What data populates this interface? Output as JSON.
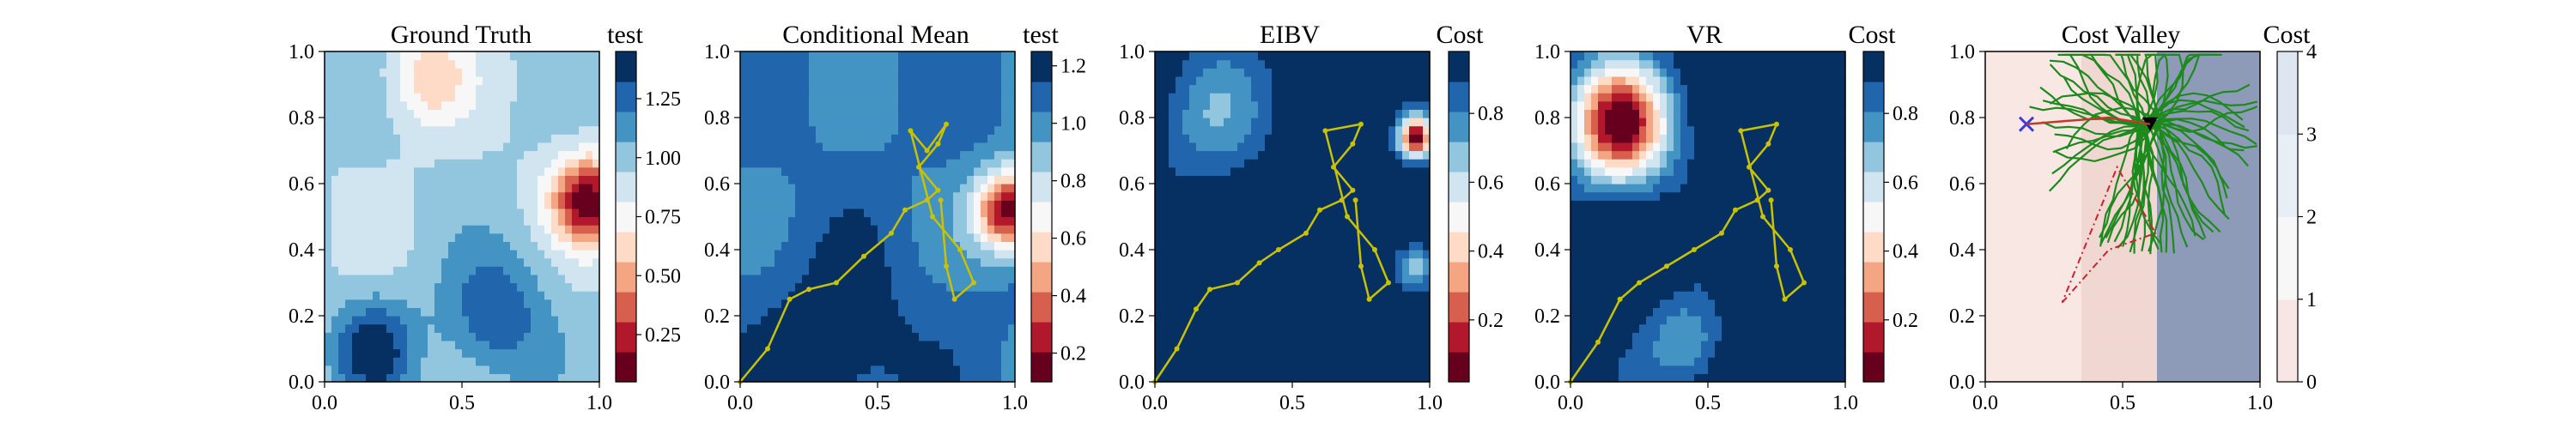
{
  "chart_data": [
    {
      "type": "heatmap",
      "title": "Ground Truth",
      "colorbar_label": "test",
      "xlim": [
        0.0,
        1.0
      ],
      "ylim": [
        0.0,
        1.0
      ],
      "xticks": [
        "0.0",
        "0.5",
        "1.0"
      ],
      "yticks": [
        "0.0",
        "0.2",
        "0.4",
        "0.6",
        "0.8",
        "1.0"
      ],
      "colorbar_ticks": [
        "0.25",
        "0.50",
        "0.75",
        "1.00",
        "1.25"
      ],
      "colorbar_range": [
        0.05,
        1.45
      ],
      "colormap": "RdBu",
      "blobs": [
        {
          "x": 0.96,
          "y": 0.55,
          "value": 0.1,
          "r": 0.13
        },
        {
          "x": 0.18,
          "y": 0.1,
          "value": 1.4,
          "r": 0.15
        },
        {
          "x": 0.38,
          "y": 0.92,
          "value": 0.6,
          "r": 0.14
        },
        {
          "x": 0.62,
          "y": 0.2,
          "value": 1.3,
          "r": 0.2
        }
      ],
      "base_value": 0.95
    },
    {
      "type": "heatmap",
      "title": "Conditional Mean",
      "colorbar_label": "test",
      "xlim": [
        0.0,
        1.0
      ],
      "ylim": [
        0.0,
        1.0
      ],
      "xticks": [
        "0.0",
        "0.5",
        "1.0"
      ],
      "yticks": [
        "0.0",
        "0.2",
        "0.4",
        "0.6",
        "0.8",
        "1.0"
      ],
      "colorbar_ticks": [
        "0.2",
        "0.4",
        "0.6",
        "0.8",
        "1.0",
        "1.2"
      ],
      "colorbar_range": [
        0.1,
        1.25
      ],
      "colormap": "RdBu",
      "blobs": [
        {
          "x": 0.98,
          "y": 0.52,
          "value": 0.1,
          "r": 0.12
        },
        {
          "x": 0.35,
          "y": 0.1,
          "value": 1.25,
          "r": 0.3
        }
      ],
      "base_value": 1.05,
      "path": [
        [
          0.0,
          0.0
        ],
        [
          0.1,
          0.1
        ],
        [
          0.18,
          0.25
        ],
        [
          0.25,
          0.28
        ],
        [
          0.35,
          0.3
        ],
        [
          0.45,
          0.38
        ],
        [
          0.55,
          0.45
        ],
        [
          0.6,
          0.52
        ],
        [
          0.68,
          0.55
        ],
        [
          0.72,
          0.58
        ],
        [
          0.65,
          0.65
        ],
        [
          0.72,
          0.72
        ],
        [
          0.75,
          0.78
        ],
        [
          0.68,
          0.7
        ],
        [
          0.62,
          0.76
        ],
        [
          0.7,
          0.5
        ],
        [
          0.8,
          0.4
        ],
        [
          0.85,
          0.3
        ],
        [
          0.78,
          0.25
        ],
        [
          0.75,
          0.35
        ],
        [
          0.73,
          0.55
        ]
      ]
    },
    {
      "type": "heatmap",
      "title": "EIBV",
      "colorbar_label": "Cost",
      "xlim": [
        0.0,
        1.0
      ],
      "ylim": [
        0.0,
        1.0
      ],
      "xticks": [
        "0.0",
        "0.5",
        "1.0"
      ],
      "yticks": [
        "0.0",
        "0.2",
        "0.4",
        "0.6",
        "0.8",
        "1.0"
      ],
      "colorbar_ticks": [
        "0.2",
        "0.4",
        "0.6",
        "0.8"
      ],
      "colorbar_range": [
        0.02,
        0.98
      ],
      "colormap": "RdBu",
      "blobs": [
        {
          "x": 0.95,
          "y": 0.74,
          "value": 0.05,
          "r": 0.06
        },
        {
          "x": 0.95,
          "y": 0.35,
          "value": 0.6,
          "r": 0.07
        },
        {
          "x": 0.2,
          "y": 0.8,
          "value": 0.75,
          "r": 0.2
        }
      ],
      "base_value": 0.98,
      "path": [
        [
          0.0,
          0.0
        ],
        [
          0.08,
          0.1
        ],
        [
          0.15,
          0.22
        ],
        [
          0.2,
          0.28
        ],
        [
          0.3,
          0.3
        ],
        [
          0.38,
          0.36
        ],
        [
          0.45,
          0.4
        ],
        [
          0.55,
          0.45
        ],
        [
          0.6,
          0.52
        ],
        [
          0.68,
          0.55
        ],
        [
          0.72,
          0.58
        ],
        [
          0.65,
          0.65
        ],
        [
          0.72,
          0.72
        ],
        [
          0.75,
          0.78
        ],
        [
          0.62,
          0.76
        ],
        [
          0.7,
          0.5
        ],
        [
          0.8,
          0.4
        ],
        [
          0.85,
          0.3
        ],
        [
          0.78,
          0.25
        ],
        [
          0.75,
          0.35
        ],
        [
          0.73,
          0.55
        ]
      ]
    },
    {
      "type": "heatmap",
      "title": "VR",
      "colorbar_label": "Cost",
      "xlim": [
        0.0,
        1.0
      ],
      "ylim": [
        0.0,
        1.0
      ],
      "xticks": [
        "0.0",
        "0.5",
        "1.0"
      ],
      "yticks": [
        "0.0",
        "0.2",
        "0.4",
        "0.6",
        "0.8",
        "1.0"
      ],
      "colorbar_ticks": [
        "0.2",
        "0.4",
        "0.6",
        "0.8"
      ],
      "colorbar_range": [
        0.02,
        0.98
      ],
      "colormap": "RdBu",
      "blobs": [
        {
          "x": 0.18,
          "y": 0.78,
          "value": 0.05,
          "r": 0.18
        },
        {
          "x": 0.42,
          "y": 0.12,
          "value": 0.7,
          "r": 0.14
        }
      ],
      "base_value": 0.98,
      "path": [
        [
          0.0,
          0.0
        ],
        [
          0.1,
          0.12
        ],
        [
          0.18,
          0.25
        ],
        [
          0.25,
          0.3
        ],
        [
          0.35,
          0.35
        ],
        [
          0.45,
          0.4
        ],
        [
          0.55,
          0.45
        ],
        [
          0.6,
          0.52
        ],
        [
          0.68,
          0.55
        ],
        [
          0.72,
          0.58
        ],
        [
          0.65,
          0.65
        ],
        [
          0.72,
          0.72
        ],
        [
          0.75,
          0.78
        ],
        [
          0.62,
          0.76
        ],
        [
          0.7,
          0.5
        ],
        [
          0.8,
          0.4
        ],
        [
          0.85,
          0.3
        ],
        [
          0.78,
          0.25
        ],
        [
          0.75,
          0.35
        ],
        [
          0.73,
          0.55
        ]
      ]
    },
    {
      "type": "heatmap",
      "title": "Cost Valley",
      "colorbar_label": "Cost",
      "xlim": [
        0.0,
        1.0
      ],
      "ylim": [
        0.0,
        1.0
      ],
      "xticks": [
        "0.0",
        "0.5",
        "1.0"
      ],
      "yticks": [
        "0.0",
        "0.2",
        "0.4",
        "0.6",
        "0.8",
        "1.0"
      ],
      "colorbar_ticks": [
        "0",
        "1",
        "2",
        "3",
        "4"
      ],
      "colorbar_range": [
        0,
        4
      ],
      "colormap": "Reds-pale",
      "markers": {
        "cross": [
          0.15,
          0.78
        ],
        "triangle": [
          0.6,
          0.78
        ]
      }
    }
  ]
}
